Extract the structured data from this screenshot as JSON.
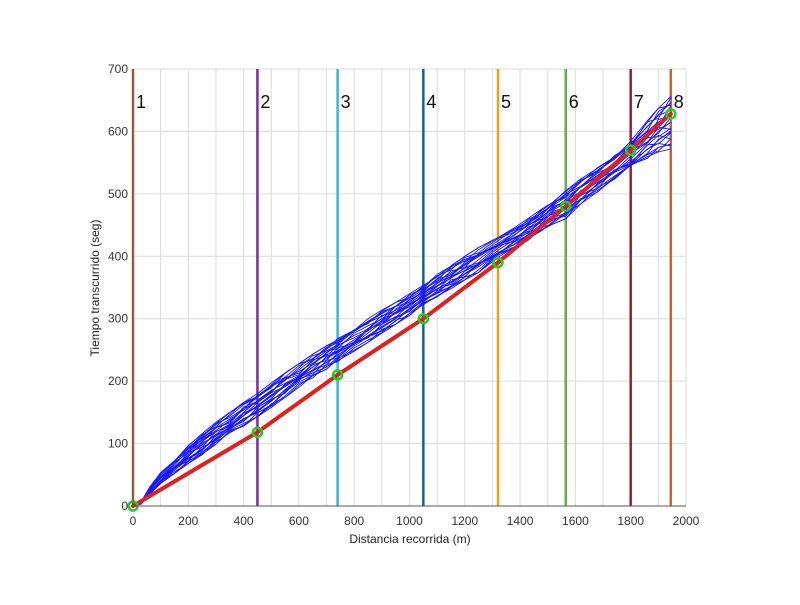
{
  "chart_data": {
    "type": "line",
    "title": "",
    "xlabel": "Distancia recorrida (m)",
    "ylabel": "Tiempo transcurrido  (seg)",
    "xlim": [
      0,
      2000
    ],
    "ylim": [
      0,
      700
    ],
    "x_ticks": [
      0,
      200,
      400,
      600,
      800,
      1000,
      1200,
      1400,
      1600,
      1800,
      2000
    ],
    "y_ticks": [
      0,
      100,
      200,
      300,
      400,
      500,
      600,
      700
    ],
    "grid": true,
    "legend": "none",
    "stage_lines": [
      {
        "label": "1",
        "x": 0,
        "color": "#c8662b"
      },
      {
        "label": "2",
        "x": 450,
        "color": "#7b2d9b"
      },
      {
        "label": "3",
        "x": 740,
        "color": "#3fb0e0"
      },
      {
        "label": "4",
        "x": 1050,
        "color": "#1f5f8b"
      },
      {
        "label": "5",
        "x": 1320,
        "color": "#e8a317"
      },
      {
        "label": "6",
        "x": 1565,
        "color": "#6aa84f"
      },
      {
        "label": "7",
        "x": 1800,
        "color": "#a01c2c"
      },
      {
        "label": "8",
        "x": 1945,
        "color": "#c8662b"
      }
    ],
    "series": [
      {
        "color": "#e02020",
        "x": [
          0,
          450,
          740,
          1050,
          1320,
          1565,
          1800,
          1945
        ],
        "y": [
          0,
          118,
          210,
          300,
          390,
          480,
          570,
          628
        ]
      }
    ],
    "series_points_color": "#22cc22",
    "bundle": {
      "color": "#1a1aee",
      "count": 24,
      "x": [
        0,
        30,
        60,
        100,
        150,
        200,
        250,
        300,
        350,
        400,
        450,
        500,
        550,
        600,
        650,
        700,
        740,
        800,
        850,
        900,
        950,
        1000,
        1050,
        1100,
        1150,
        1200,
        1250,
        1320,
        1380,
        1430,
        1480,
        1520,
        1565,
        1620,
        1680,
        1740,
        1800,
        1860,
        1900,
        1945
      ],
      "y_low": [
        0,
        3,
        18,
        36,
        52,
        68,
        82,
        99,
        113,
        128,
        143,
        158,
        174,
        190,
        205,
        219,
        231,
        248,
        262,
        277,
        291,
        305,
        318,
        335,
        348,
        362,
        374,
        398,
        412,
        426,
        441,
        452,
        460,
        484,
        503,
        523,
        540,
        557,
        567,
        572
      ],
      "y_high": [
        0,
        7,
        30,
        55,
        75,
        97,
        116,
        134,
        150,
        166,
        180,
        197,
        213,
        228,
        243,
        257,
        268,
        285,
        300,
        314,
        326,
        340,
        357,
        371,
        386,
        400,
        414,
        430,
        446,
        461,
        476,
        487,
        505,
        524,
        542,
        562,
        589,
        617,
        637,
        656
      ]
    }
  }
}
